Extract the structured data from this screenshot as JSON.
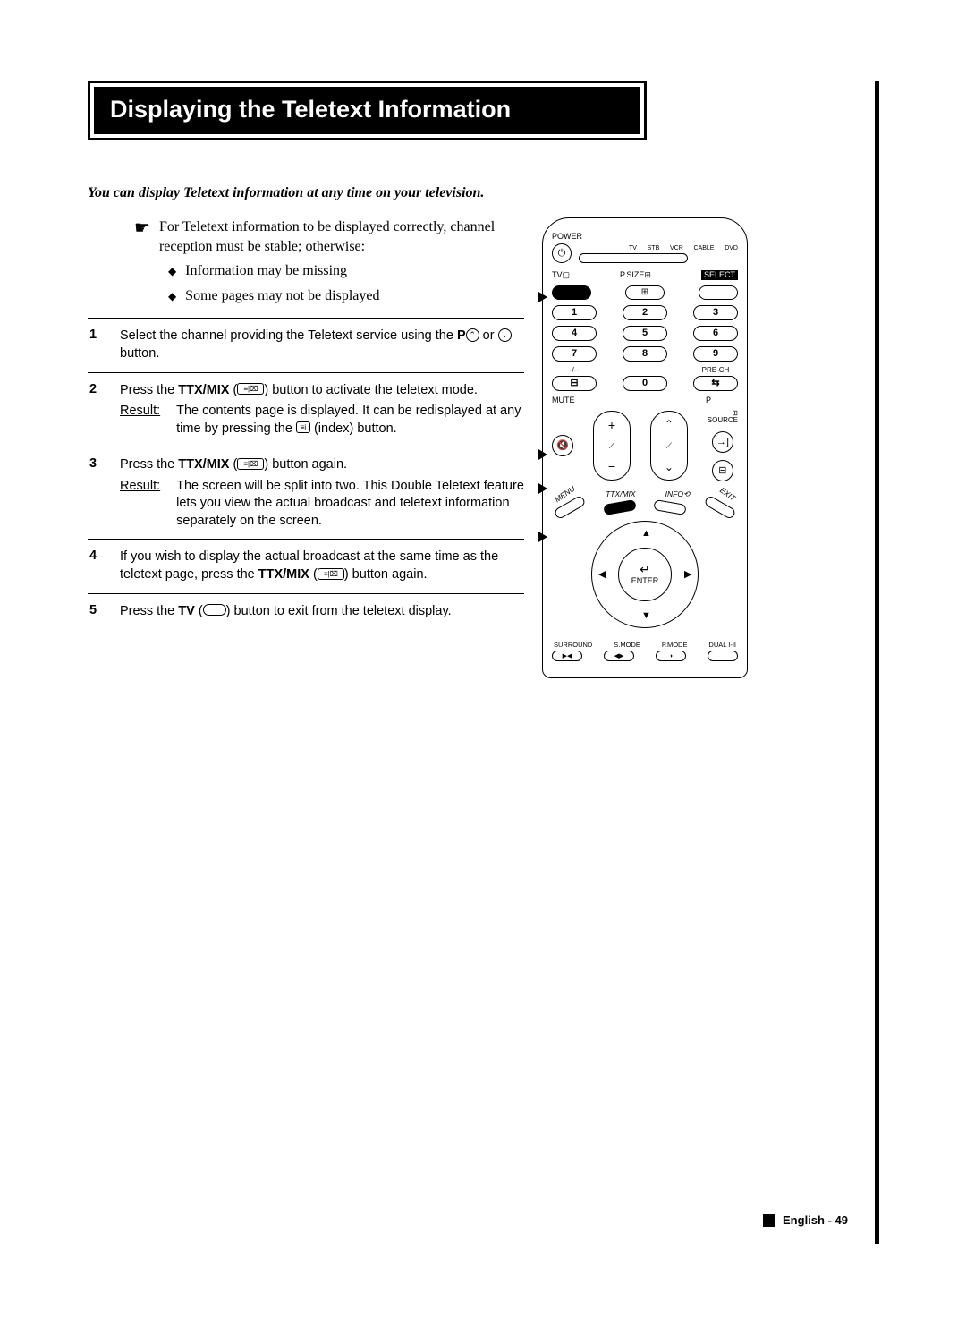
{
  "title": "Displaying the Teletext Information",
  "intro": "You can display Teletext information at any time on your television.",
  "note": {
    "lead": "For Teletext information to be displayed correctly, channel reception must be stable; otherwise:",
    "bullets": [
      "Information may be missing",
      "Some pages may not be displayed"
    ]
  },
  "steps": [
    {
      "num": "1",
      "html": "Select the channel providing the Teletext service using the <b>P</b><span class='inline-icon'>⌃</span> or <span class='inline-icon'>⌄</span> button."
    },
    {
      "num": "2",
      "html": "Press the <b>TTX/MIX</b> (<span class='inline-icon-rect'>≡|⌧</span>) button to activate the teletext mode.",
      "result": "The contents page is displayed. It can be redisplayed at any time by pressing the <span class='inline-icon-index'>≡i</span> (index) button."
    },
    {
      "num": "3",
      "html": "Press the <b>TTX/MIX</b> (<span class='inline-icon-rect'>≡|⌧</span>) button again.",
      "result": "The screen will be split into two. This Double Teletext feature lets you view the actual broadcast and teletext information separately on the screen."
    },
    {
      "num": "4",
      "html": "If you wish to display the actual broadcast at the same time as the teletext page, press the <b>TTX/MIX</b> (<span class='inline-icon-rect'>≡|⌧</span>) button again."
    },
    {
      "num": "5",
      "html": "Press the <b>TV</b> (<span class='inline-icon-tv'></span>) button to exit from the teletext display."
    }
  ],
  "resultLabel": "Result:",
  "remote": {
    "power": "POWER",
    "modes": [
      "TV",
      "STB",
      "VCR",
      "CABLE",
      "DVD"
    ],
    "tv": "TV",
    "psize": "P.SIZE",
    "select": "SELECT",
    "numbers": [
      "1",
      "2",
      "3",
      "4",
      "5",
      "6",
      "7",
      "8",
      "9"
    ],
    "dash": "-/--",
    "zero": "0",
    "prech": "PRE-CH",
    "mute": "MUTE",
    "p": "P",
    "source": "SOURCE",
    "menu": "MENU",
    "ttxmix": "TTX/MIX",
    "info": "INFO",
    "exit": "EXIT",
    "enter": "ENTER",
    "enterIcon": "↵",
    "bottom": [
      "SURROUND",
      "S.MODE",
      "P.MODE",
      "DUAL I-II"
    ]
  },
  "footer": {
    "lang": "English",
    "page": "49"
  }
}
